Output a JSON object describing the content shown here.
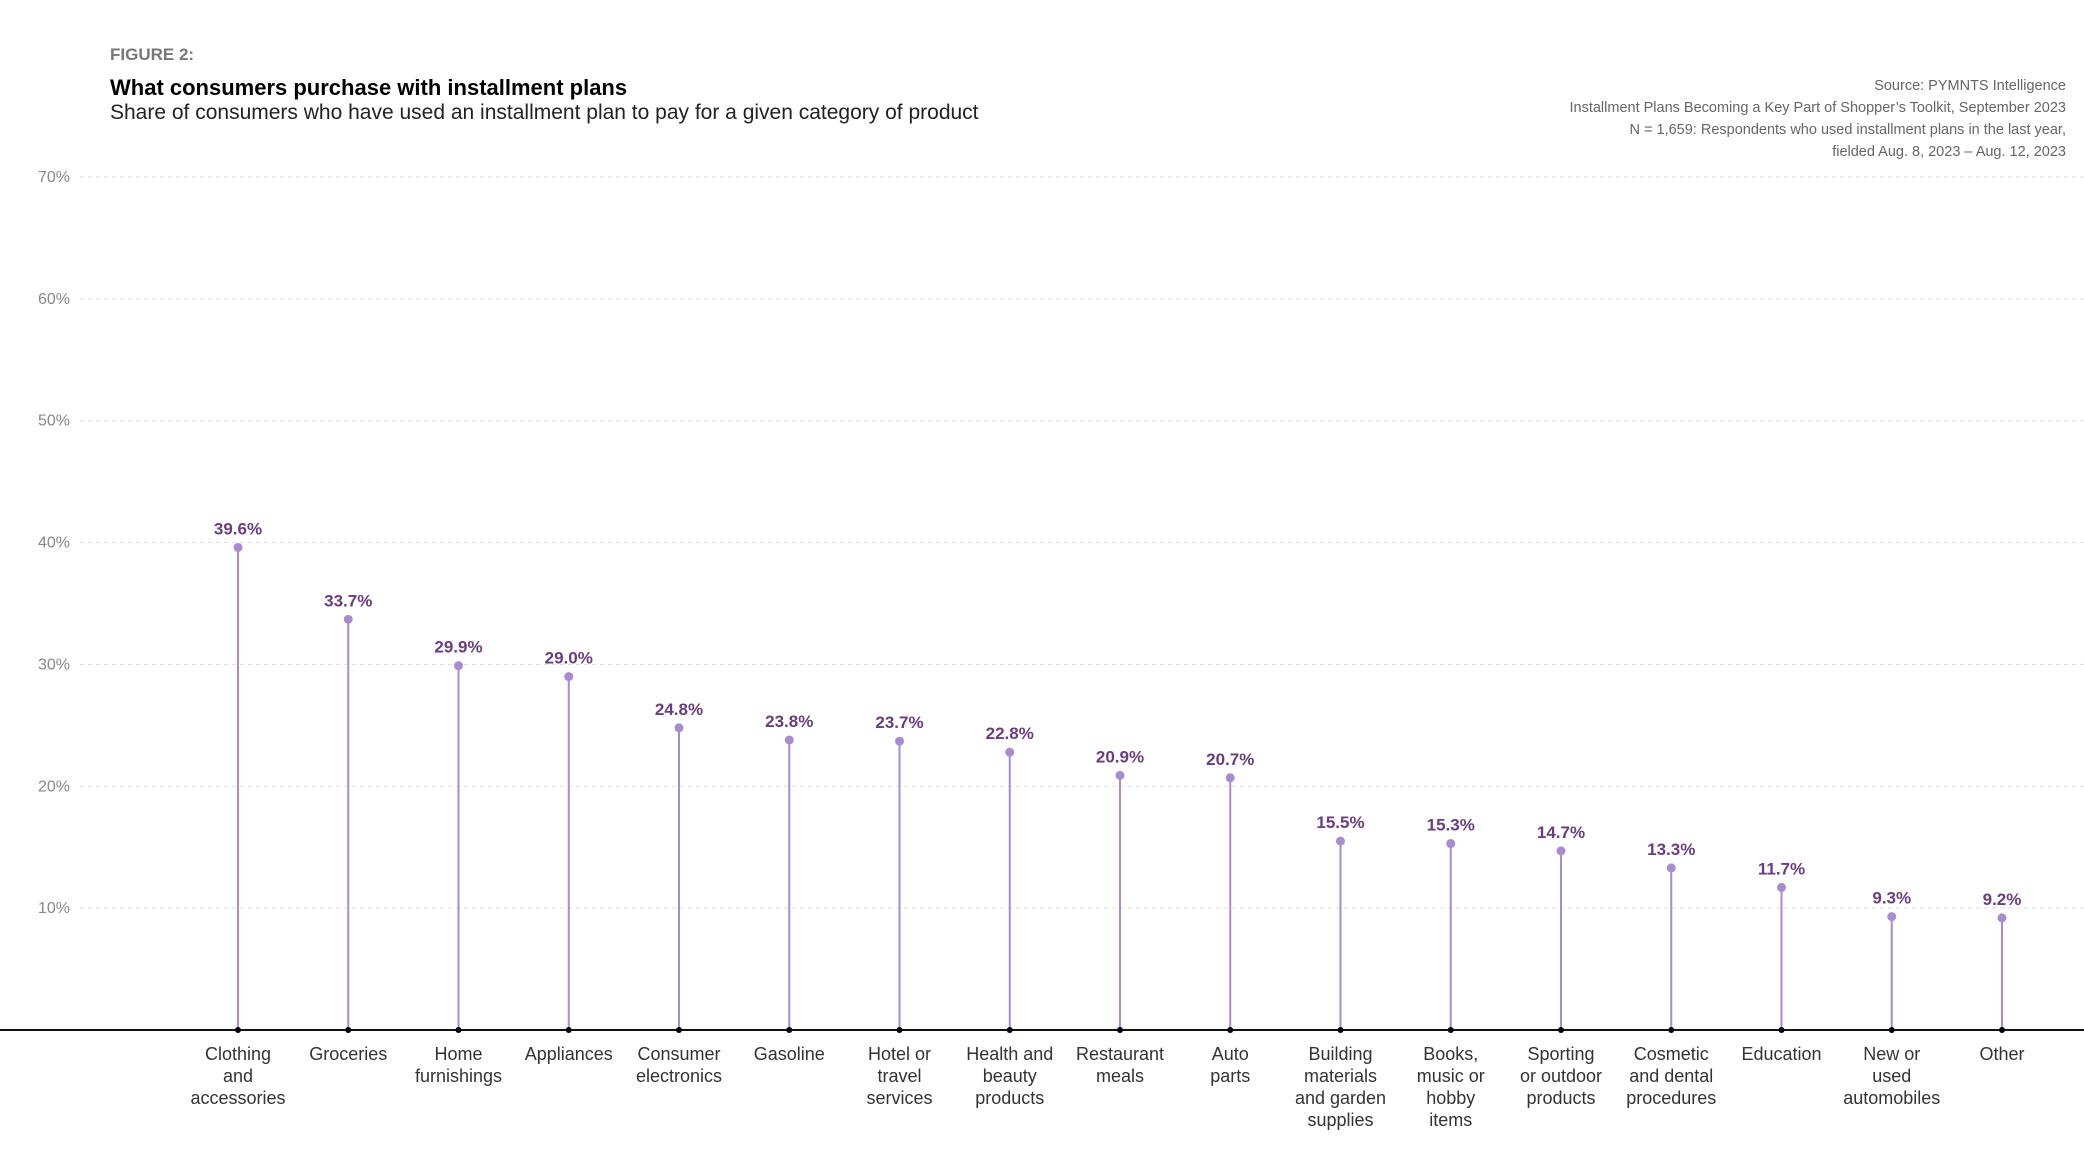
{
  "header": {
    "figure_label": "FIGURE 2:",
    "title": "What consumers purchase with installment plans",
    "subtitle": "Share of consumers who have used an installment plan to pay for a given category of product"
  },
  "source": [
    "Source: PYMNTS Intelligence",
    "Installment Plans Becoming a Key Part of Shopper’s Toolkit, September 2023",
    "N = 1,659: Respondents who used installment plans in the last year,",
    "fielded Aug. 8, 2023 – Aug. 12, 2023"
  ],
  "chart_data": {
    "type": "lollipop",
    "title": "What consumers purchase with installment plans",
    "subtitle": "Share of consumers who have used an installment plan to pay for a given category of product",
    "ylim": [
      0,
      70
    ],
    "yticks": [
      10,
      20,
      30,
      40,
      50,
      60,
      70
    ],
    "ytick_labels": [
      "10%",
      "20%",
      "30%",
      "40%",
      "50%",
      "60%",
      "70%"
    ],
    "grid": true,
    "colors": {
      "stem": "#a98bd0",
      "label": "#6a3d7e"
    },
    "categories": [
      [
        "Clothing",
        "and",
        "accessories"
      ],
      [
        "Groceries"
      ],
      [
        "Home",
        "furnishings"
      ],
      [
        "Appliances"
      ],
      [
        "Consumer",
        "electronics"
      ],
      [
        "Gasoline"
      ],
      [
        "Hotel or",
        "travel",
        "services"
      ],
      [
        "Health and",
        "beauty",
        "products"
      ],
      [
        "Restaurant",
        "meals"
      ],
      [
        "Auto",
        "parts"
      ],
      [
        "Building",
        "materials",
        "and garden",
        "supplies"
      ],
      [
        "Books,",
        "music or",
        "hobby",
        "items"
      ],
      [
        "Sporting",
        "or outdoor",
        "products"
      ],
      [
        "Cosmetic",
        "and dental",
        "procedures"
      ],
      [
        "Education"
      ],
      [
        "New or",
        "used",
        "automobiles"
      ],
      [
        "Other"
      ]
    ],
    "values": [
      39.6,
      33.7,
      29.9,
      29.0,
      24.8,
      23.8,
      23.7,
      22.8,
      20.9,
      20.7,
      15.5,
      15.3,
      14.7,
      13.3,
      11.7,
      9.3,
      9.2
    ],
    "value_labels": [
      "39.6%",
      "33.7%",
      "29.9%",
      "29.0%",
      "24.8%",
      "23.8%",
      "23.7%",
      "22.8%",
      "20.9%",
      "20.7%",
      "15.5%",
      "15.3%",
      "14.7%",
      "13.3%",
      "11.7%",
      "9.3%",
      "9.2%"
    ]
  }
}
